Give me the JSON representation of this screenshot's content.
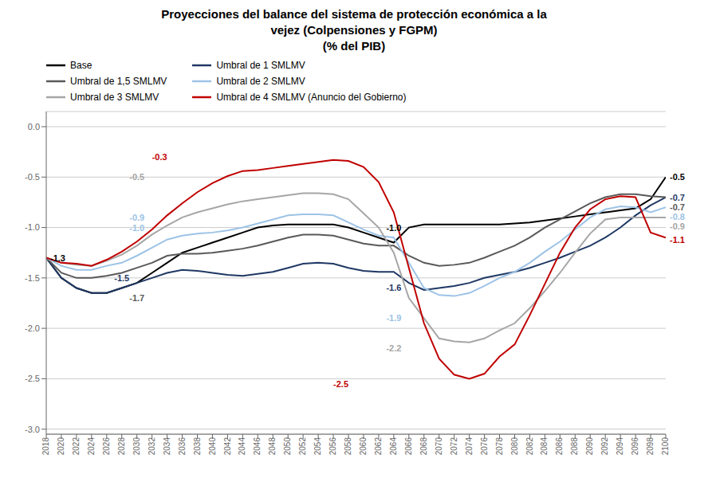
{
  "chart_data": {
    "type": "line",
    "title": "Proyecciones del balance del sistema de protección económica a la\nvejez (Colpensiones y FGPM)\n(% del PIB)",
    "x": [
      2018,
      2020,
      2022,
      2024,
      2026,
      2028,
      2030,
      2032,
      2034,
      2036,
      2038,
      2040,
      2042,
      2044,
      2046,
      2048,
      2050,
      2052,
      2054,
      2056,
      2058,
      2060,
      2062,
      2064,
      2066,
      2068,
      2070,
      2072,
      2074,
      2076,
      2078,
      2080,
      2082,
      2084,
      2086,
      2088,
      2090,
      2092,
      2094,
      2096,
      2098,
      2100
    ],
    "series": [
      {
        "name": "Base",
        "color": "#000000",
        "values": [
          -1.3,
          -1.5,
          -1.6,
          -1.65,
          -1.65,
          -1.6,
          -1.55,
          -1.45,
          -1.35,
          -1.25,
          -1.2,
          -1.15,
          -1.1,
          -1.05,
          -1.0,
          -0.98,
          -0.97,
          -0.97,
          -0.97,
          -0.97,
          -1.0,
          -1.05,
          -1.1,
          -1.15,
          -1.0,
          -0.97,
          -0.97,
          -0.97,
          -0.97,
          -0.97,
          -0.97,
          -0.96,
          -0.95,
          -0.93,
          -0.91,
          -0.89,
          -0.87,
          -0.85,
          -0.83,
          -0.81,
          -0.72,
          -0.5
        ]
      },
      {
        "name": "Umbral de 1 SMLMV",
        "color": "#1F3864",
        "values": [
          -1.3,
          -1.5,
          -1.6,
          -1.65,
          -1.65,
          -1.6,
          -1.55,
          -1.5,
          -1.45,
          -1.42,
          -1.43,
          -1.45,
          -1.47,
          -1.48,
          -1.46,
          -1.44,
          -1.4,
          -1.36,
          -1.35,
          -1.36,
          -1.4,
          -1.43,
          -1.44,
          -1.44,
          -1.55,
          -1.62,
          -1.6,
          -1.58,
          -1.55,
          -1.5,
          -1.47,
          -1.44,
          -1.4,
          -1.35,
          -1.3,
          -1.24,
          -1.18,
          -1.1,
          -1.0,
          -0.88,
          -0.78,
          -0.7
        ]
      },
      {
        "name": "Umbral de 1,5 SMLMV",
        "color": "#595959",
        "values": [
          -1.3,
          -1.45,
          -1.5,
          -1.5,
          -1.48,
          -1.45,
          -1.4,
          -1.35,
          -1.28,
          -1.26,
          -1.26,
          -1.25,
          -1.23,
          -1.21,
          -1.18,
          -1.14,
          -1.1,
          -1.07,
          -1.07,
          -1.08,
          -1.12,
          -1.16,
          -1.18,
          -1.18,
          -1.28,
          -1.35,
          -1.38,
          -1.37,
          -1.35,
          -1.3,
          -1.24,
          -1.18,
          -1.1,
          -1.0,
          -0.92,
          -0.84,
          -0.76,
          -0.7,
          -0.67,
          -0.67,
          -0.69,
          -0.7
        ]
      },
      {
        "name": "Umbral de 2 SMLMV",
        "color": "#9DC3E6",
        "values": [
          -1.3,
          -1.38,
          -1.42,
          -1.42,
          -1.38,
          -1.35,
          -1.28,
          -1.2,
          -1.12,
          -1.08,
          -1.06,
          -1.05,
          -1.03,
          -1.0,
          -0.96,
          -0.92,
          -0.88,
          -0.87,
          -0.87,
          -0.88,
          -0.95,
          -1.02,
          -1.08,
          -1.1,
          -1.35,
          -1.6,
          -1.67,
          -1.68,
          -1.65,
          -1.58,
          -1.5,
          -1.44,
          -1.35,
          -1.24,
          -1.14,
          -1.02,
          -0.9,
          -0.82,
          -0.79,
          -0.8,
          -0.85,
          -0.8
        ]
      },
      {
        "name": "Umbral de 3 SMLMV",
        "color": "#A6A6A6",
        "values": [
          -1.3,
          -1.35,
          -1.37,
          -1.38,
          -1.33,
          -1.27,
          -1.18,
          -1.07,
          -0.98,
          -0.9,
          -0.85,
          -0.81,
          -0.77,
          -0.74,
          -0.72,
          -0.7,
          -0.68,
          -0.66,
          -0.66,
          -0.67,
          -0.72,
          -0.86,
          -1.0,
          -1.25,
          -1.7,
          -1.9,
          -2.1,
          -2.13,
          -2.14,
          -2.1,
          -2.02,
          -1.95,
          -1.8,
          -1.63,
          -1.45,
          -1.25,
          -1.06,
          -0.92,
          -0.9,
          -0.9,
          -0.9,
          -0.9
        ]
      },
      {
        "name": "Umbral de 4 SMLMV (Anuncio del Gobierno)",
        "color": "#C00000",
        "values": [
          -1.3,
          -1.35,
          -1.36,
          -1.38,
          -1.32,
          -1.24,
          -1.14,
          -1.02,
          -0.88,
          -0.76,
          -0.65,
          -0.56,
          -0.49,
          -0.44,
          -0.43,
          -0.41,
          -0.39,
          -0.37,
          -0.35,
          -0.33,
          -0.34,
          -0.4,
          -0.55,
          -0.85,
          -1.4,
          -1.95,
          -2.3,
          -2.46,
          -2.5,
          -2.45,
          -2.28,
          -2.16,
          -1.87,
          -1.56,
          -1.25,
          -1.0,
          -0.82,
          -0.72,
          -0.69,
          -0.7,
          -1.05,
          -1.1
        ]
      }
    ],
    "xlim": [
      2018,
      2100
    ],
    "xticks": [
      2018,
      2020,
      2022,
      2024,
      2026,
      2028,
      2030,
      2032,
      2034,
      2036,
      2038,
      2040,
      2042,
      2044,
      2046,
      2048,
      2050,
      2052,
      2054,
      2056,
      2058,
      2060,
      2062,
      2064,
      2066,
      2068,
      2070,
      2072,
      2074,
      2076,
      2078,
      2080,
      2082,
      2084,
      2086,
      2088,
      2090,
      2092,
      2094,
      2096,
      2098,
      2100
    ],
    "ylim": [
      -3.05,
      0.15
    ],
    "yticks": [
      {
        "value": 0,
        "label": "0.0"
      },
      -0.5,
      {
        "value": -1,
        "label": "-1.0"
      },
      -1.5,
      {
        "value": -2,
        "label": "-2.0"
      },
      -2.5,
      {
        "value": -3,
        "label": "-3.0"
      }
    ],
    "grid": true,
    "legend": "top",
    "annotations": [
      {
        "text": "-1.3",
        "x": 2018,
        "y": -1.3,
        "color": "#000000"
      },
      {
        "text": "-1.0",
        "x": 2064,
        "y": -1.0,
        "color": "#000000"
      },
      {
        "text": "-0.5",
        "x": 2100,
        "y": -0.5,
        "color": "#000000"
      },
      {
        "text": "-1.5",
        "x": 2028,
        "y": -1.5,
        "color": "#1F3864"
      },
      {
        "text": "-1.6",
        "x": 2064,
        "y": -1.6,
        "color": "#1F3864"
      },
      {
        "text": "-0.7",
        "x": 2100,
        "y": -0.7,
        "color": "#1F3864"
      },
      {
        "text": "-1.7",
        "x": 2030,
        "y": -1.7,
        "color": "#595959"
      },
      {
        "text": "-0.7",
        "x": 2100,
        "y": -0.72,
        "color": "#595959"
      },
      {
        "text": "-1.0",
        "x": 2030,
        "y": -1.0,
        "color": "#9DC3E6"
      },
      {
        "text": "-1.9",
        "x": 2064,
        "y": -1.9,
        "color": "#9DC3E6"
      },
      {
        "text": "-0.8",
        "x": 2100,
        "y": -0.82,
        "color": "#9DC3E6"
      },
      {
        "text": "-0.5",
        "x": 2030,
        "y": -0.5,
        "color": "#A6A6A6"
      },
      {
        "text": "-0.9",
        "x": 2030,
        "y": -0.9,
        "color": "#9DC3E6"
      },
      {
        "text": "-2.2",
        "x": 2064,
        "y": -2.2,
        "color": "#A6A6A6"
      },
      {
        "text": "-0.9",
        "x": 2100,
        "y": -0.92,
        "color": "#A6A6A6"
      },
      {
        "text": "-0.3",
        "x": 2033,
        "y": -0.3,
        "color": "#C00000"
      },
      {
        "text": "-2.5",
        "x": 2057,
        "y": -2.55,
        "color": "#C00000"
      },
      {
        "text": "-1.1",
        "x": 2100,
        "y": -1.12,
        "color": "#C00000"
      }
    ]
  }
}
